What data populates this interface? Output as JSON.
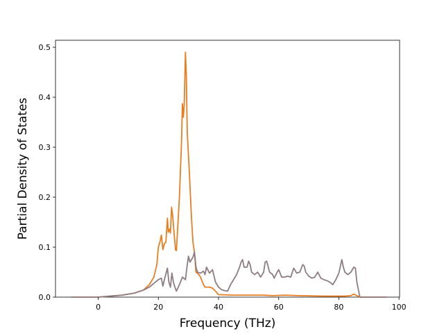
{
  "chart_data": {
    "type": "line",
    "xlabel": "Frequency (THz)",
    "ylabel": "Partial Density of States",
    "xlim": [
      -14.2,
      100.2
    ],
    "ylim": [
      0,
      0.514
    ],
    "xticks": [
      0,
      20,
      40,
      60,
      80,
      100
    ],
    "yticks": [
      0.0,
      0.1,
      0.2,
      0.3,
      0.4,
      0.5
    ],
    "xtick_labels": [
      "0",
      "20",
      "40",
      "60",
      "80",
      "100"
    ],
    "ytick_labels": [
      "0.0",
      "0.1",
      "0.2",
      "0.3",
      "0.4",
      "0.5"
    ],
    "grid": false,
    "legend": "none",
    "series": [
      {
        "color": "#e87e20",
        "points": [
          [
            -9,
            0
          ],
          [
            0,
            0
          ],
          [
            4,
            0.002
          ],
          [
            8,
            0.004
          ],
          [
            12,
            0.008
          ],
          [
            15,
            0.014
          ],
          [
            17,
            0.025
          ],
          [
            18.5,
            0.04
          ],
          [
            19.5,
            0.065
          ],
          [
            20,
            0.1
          ],
          [
            20.5,
            0.11
          ],
          [
            21,
            0.124
          ],
          [
            21.5,
            0.095
          ],
          [
            22,
            0.107
          ],
          [
            22.5,
            0.11
          ],
          [
            23,
            0.158
          ],
          [
            23.3,
            0.13
          ],
          [
            23.7,
            0.136
          ],
          [
            24,
            0.128
          ],
          [
            24.4,
            0.18
          ],
          [
            24.8,
            0.16
          ],
          [
            25.2,
            0.13
          ],
          [
            25.7,
            0.095
          ],
          [
            26,
            0.093
          ],
          [
            27,
            0.2
          ],
          [
            27.7,
            0.31
          ],
          [
            28,
            0.387
          ],
          [
            28.3,
            0.36
          ],
          [
            28.6,
            0.385
          ],
          [
            29,
            0.49
          ],
          [
            29.3,
            0.44
          ],
          [
            29.6,
            0.33
          ],
          [
            30.3,
            0.25
          ],
          [
            31,
            0.16
          ],
          [
            31.5,
            0.11
          ],
          [
            32,
            0.09
          ],
          [
            32.5,
            0.05
          ],
          [
            33.5,
            0.045
          ],
          [
            34,
            0.04
          ],
          [
            35,
            0.025
          ],
          [
            35.5,
            0.02
          ],
          [
            37,
            0.02
          ],
          [
            38,
            0.018
          ],
          [
            39,
            0.012
          ],
          [
            40,
            0.005
          ],
          [
            45,
            0.004
          ],
          [
            55,
            0.004
          ],
          [
            58,
            0.003
          ],
          [
            62,
            0.004
          ],
          [
            67,
            0.003
          ],
          [
            75,
            0.002
          ],
          [
            82,
            0.002
          ],
          [
            84,
            0.003
          ],
          [
            85,
            0.006
          ],
          [
            86,
            0.003
          ],
          [
            87,
            0
          ],
          [
            96,
            0
          ]
        ]
      },
      {
        "color": "#8c7b82",
        "points": [
          [
            -9,
            0
          ],
          [
            0,
            0
          ],
          [
            4,
            0.002
          ],
          [
            8,
            0.004
          ],
          [
            12,
            0.008
          ],
          [
            15,
            0.014
          ],
          [
            17,
            0.02
          ],
          [
            19,
            0.03
          ],
          [
            20,
            0.035
          ],
          [
            21,
            0.038
          ],
          [
            21.5,
            0.022
          ],
          [
            22,
            0.035
          ],
          [
            23,
            0.058
          ],
          [
            23.5,
            0.03
          ],
          [
            24,
            0.02
          ],
          [
            24.5,
            0.048
          ],
          [
            25,
            0.03
          ],
          [
            25.5,
            0.02
          ],
          [
            26,
            0.012
          ],
          [
            27,
            0.025
          ],
          [
            28,
            0.04
          ],
          [
            29,
            0.035
          ],
          [
            29.5,
            0.06
          ],
          [
            30,
            0.082
          ],
          [
            30.5,
            0.07
          ],
          [
            31,
            0.075
          ],
          [
            31.5,
            0.08
          ],
          [
            32,
            0.09
          ],
          [
            32.5,
            0.06
          ],
          [
            33,
            0.05
          ],
          [
            34,
            0.048
          ],
          [
            35,
            0.052
          ],
          [
            35.5,
            0.045
          ],
          [
            36,
            0.06
          ],
          [
            37,
            0.048
          ],
          [
            38,
            0.055
          ],
          [
            39,
            0.03
          ],
          [
            40,
            0.02
          ],
          [
            41,
            0.015
          ],
          [
            42,
            0.013
          ],
          [
            43,
            0.012
          ],
          [
            44,
            0.025
          ],
          [
            45,
            0.035
          ],
          [
            46,
            0.045
          ],
          [
            47,
            0.06
          ],
          [
            47.5,
            0.07
          ],
          [
            48,
            0.075
          ],
          [
            48.5,
            0.06
          ],
          [
            49.5,
            0.06
          ],
          [
            50,
            0.072
          ],
          [
            50.5,
            0.065
          ],
          [
            51,
            0.05
          ],
          [
            52,
            0.045
          ],
          [
            53,
            0.05
          ],
          [
            54,
            0.04
          ],
          [
            55,
            0.05
          ],
          [
            55.5,
            0.07
          ],
          [
            56,
            0.072
          ],
          [
            57,
            0.05
          ],
          [
            58,
            0.045
          ],
          [
            58.5,
            0.038
          ],
          [
            59.5,
            0.05
          ],
          [
            60,
            0.055
          ],
          [
            61,
            0.04
          ],
          [
            62,
            0.04
          ],
          [
            63,
            0.042
          ],
          [
            64,
            0.04
          ],
          [
            65,
            0.058
          ],
          [
            66,
            0.048
          ],
          [
            67,
            0.05
          ],
          [
            68,
            0.065
          ],
          [
            68.5,
            0.062
          ],
          [
            69,
            0.05
          ],
          [
            70,
            0.042
          ],
          [
            71,
            0.038
          ],
          [
            72,
            0.04
          ],
          [
            73,
            0.05
          ],
          [
            74,
            0.038
          ],
          [
            75,
            0.035
          ],
          [
            76,
            0.033
          ],
          [
            77,
            0.03
          ],
          [
            78,
            0.025
          ],
          [
            79,
            0.035
          ],
          [
            80,
            0.048
          ],
          [
            81,
            0.075
          ],
          [
            81.5,
            0.06
          ],
          [
            82,
            0.05
          ],
          [
            83,
            0.045
          ],
          [
            84,
            0.05
          ],
          [
            85,
            0.06
          ],
          [
            85.5,
            0.058
          ],
          [
            86,
            0.03
          ],
          [
            87,
            0
          ],
          [
            96,
            0
          ]
        ]
      }
    ]
  }
}
